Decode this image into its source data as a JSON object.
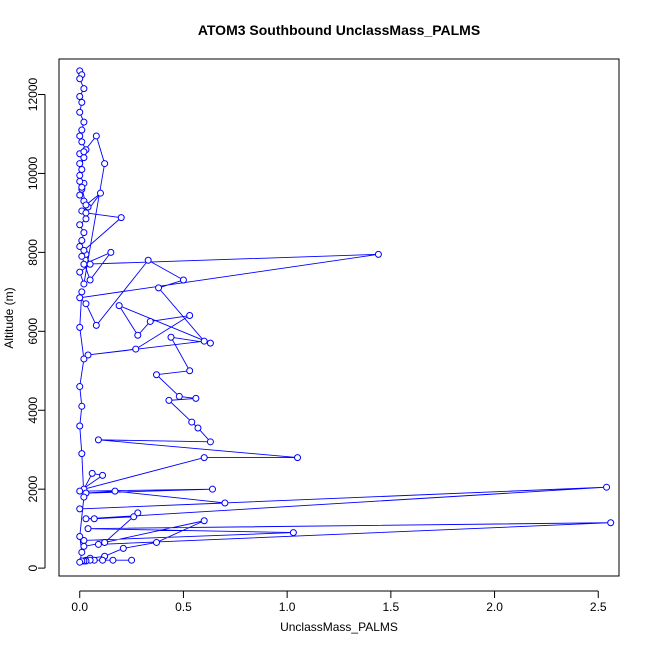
{
  "chart_data": {
    "type": "line",
    "title": "ATOM3 Southbound UnclassMass_PALMS",
    "xlabel": "UnclassMass_PALMS",
    "ylabel": "Altitude (m)",
    "xlim": [
      -0.1,
      2.6
    ],
    "ylim": [
      -200,
      12900
    ],
    "x_ticks": [
      0.0,
      0.5,
      1.0,
      1.5,
      2.0,
      2.5
    ],
    "x_tick_labels": [
      "0.0",
      "0.5",
      "1.0",
      "1.5",
      "2.0",
      "2.5"
    ],
    "y_ticks": [
      0,
      2000,
      4000,
      6000,
      8000,
      10000,
      12000
    ],
    "y_tick_labels": [
      "0",
      "2000",
      "4000",
      "6000",
      "8000",
      "10000",
      "12000"
    ],
    "grid": false,
    "series": [
      {
        "color": "#0000ff",
        "marker": "open-circle",
        "x": [
          0.0,
          0.01,
          0.0,
          0.02,
          0.0,
          0.01,
          0.0,
          0.02,
          0.01,
          0.0,
          0.01,
          0.03,
          0.0,
          0.02,
          0.0,
          0.01,
          0.0,
          0.02,
          0.01,
          0.0,
          0.02,
          0.04,
          0.01,
          0.03,
          0.0,
          0.02,
          0.01,
          0.0,
          0.03,
          0.05,
          0.0,
          0.02,
          0.12,
          0.08,
          0.02,
          0.0,
          0.01,
          0.03,
          0.1,
          0.03,
          0.2,
          0.02,
          0.01,
          0.05,
          0.15,
          0.02,
          1.44,
          0.0,
          0.03,
          0.08,
          0.33,
          0.5,
          0.38,
          0.6,
          0.04,
          0.27,
          0.53,
          0.34,
          0.28,
          0.19,
          0.63,
          0.44,
          0.53,
          0.37,
          0.48,
          0.56,
          0.43,
          0.54,
          0.57,
          0.63,
          0.09,
          1.05,
          0.6,
          0.02,
          0.06,
          0.11,
          0.0,
          0.64,
          0.03,
          0.17,
          0.7,
          0.0,
          2.54,
          0.03,
          0.07,
          0.26,
          0.28,
          0.12,
          0.09,
          2.56,
          0.04,
          1.03,
          0.02,
          0.02,
          0.12,
          0.6,
          0.37,
          0.21,
          0.12,
          0.05,
          0.03,
          0.25,
          0.16,
          0.11,
          0.07,
          0.05,
          0.03,
          0.02,
          0.01,
          0.0,
          0.01,
          0.0,
          0.02,
          0.01,
          0.0,
          0.01,
          0.0,
          0.02,
          0.0,
          0.01
        ],
        "y": [
          12600,
          12500,
          12400,
          12150,
          11950,
          11800,
          11550,
          11300,
          11100,
          10950,
          10800,
          10600,
          10500,
          10400,
          10250,
          10100,
          9950,
          9750,
          9600,
          9450,
          9300,
          9150,
          9050,
          8850,
          8700,
          8500,
          8300,
          8150,
          7950,
          7700,
          7500,
          7200,
          10250,
          10950,
          10550,
          9800,
          9650,
          9200,
          9500,
          9000,
          8880,
          8050,
          7900,
          7300,
          8000,
          7700,
          7950,
          6850,
          6700,
          6150,
          7800,
          7300,
          7100,
          5750,
          5400,
          5550,
          6400,
          6250,
          5900,
          6650,
          5700,
          5850,
          5000,
          4900,
          4350,
          4300,
          4250,
          3700,
          3550,
          3200,
          3250,
          2800,
          2800,
          2000,
          2400,
          2350,
          1950,
          2000,
          1900,
          1950,
          1650,
          1500,
          2050,
          1250,
          1250,
          1300,
          1400,
          650,
          600,
          1150,
          1000,
          900,
          700,
          550,
          650,
          1200,
          650,
          500,
          300,
          250,
          200,
          200,
          200,
          200,
          200,
          200,
          180,
          180,
          180,
          150,
          400,
          800,
          1800,
          2900,
          3600,
          4100,
          4600,
          5300,
          6100,
          7000
        ]
      }
    ]
  }
}
